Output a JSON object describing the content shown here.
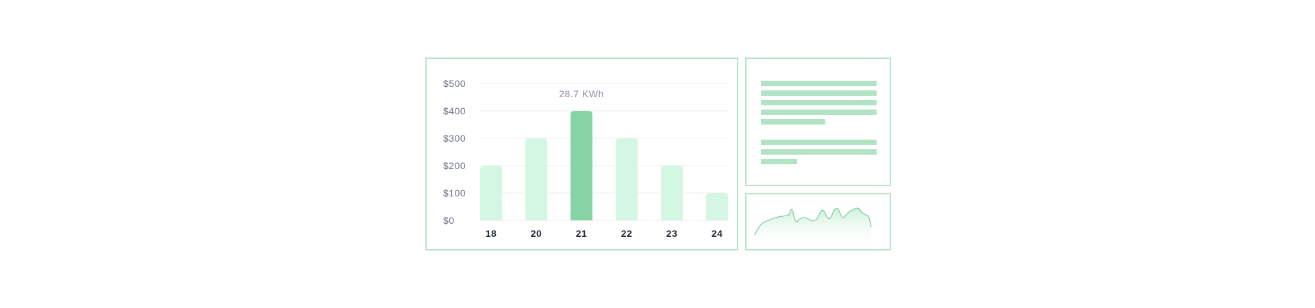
{
  "chart_data": {
    "type": "bar",
    "categories": [
      "18",
      "20",
      "21",
      "22",
      "23",
      "24"
    ],
    "values": [
      200,
      300,
      400,
      300,
      200,
      100
    ],
    "highlight_index": 2,
    "yticks": [
      "$0",
      "$100",
      "$200",
      "$300",
      "$400",
      "$500"
    ],
    "ylim": [
      0,
      500
    ],
    "annotation": "28.7 KWh",
    "grid": true,
    "colors": {
      "bar": "#d4f7e3",
      "highlight": "#86d3a5",
      "grid": "#ececec"
    }
  },
  "sparkline": {
    "colors": {
      "line": "#86d3a5",
      "fill_top": "#c8eed7"
    }
  },
  "text_placeholder": {
    "color": "#b2e3c5"
  }
}
